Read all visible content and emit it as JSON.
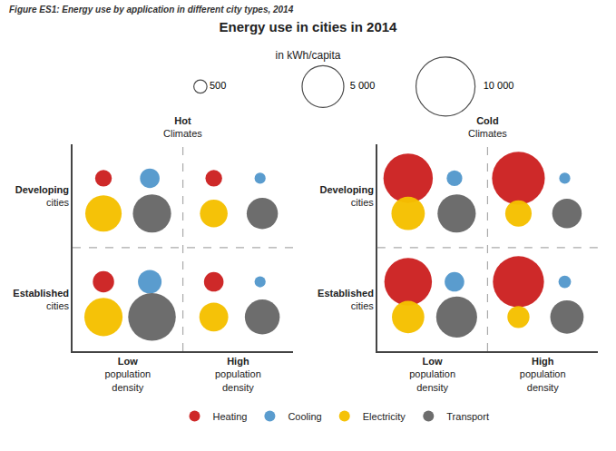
{
  "chart_data": {
    "type": "bubble",
    "title": "Energy use in cities in 2014",
    "subtitle": "in kWh/capita",
    "annotations": [
      "Figure ES1: Energy use by application in different city types, 2014"
    ],
    "x_categories": [
      "Low\npopulation\ndensity",
      "High\npopulation\ndensity"
    ],
    "y_categories": [
      "Developing\ncities",
      "Established\ncities"
    ],
    "size_legend": {
      "values": [
        500,
        5000,
        10000
      ],
      "labels": [
        "500",
        "5 000",
        "10 000"
      ]
    },
    "grid": false,
    "legend": "bottom",
    "panels": [
      {
        "title": "Hot",
        "subtitle": "Climates",
        "series": [
          {
            "name": "Heating",
            "color": "#cc2222",
            "x": [
              "Low\npopulation\ndensity",
              "High\npopulation\ndensity",
              "Low\npopulation\ndensity",
              "High\npopulation\ndensity"
            ],
            "y": [
              "Developing\ncities",
              "Developing\ncities",
              "Established\ncities",
              "Established\ncities"
            ],
            "sizes": [
              800,
              800,
              1300,
              1100
            ]
          },
          {
            "name": "Cooling",
            "color": "#5599cc",
            "x": [
              "Low\npopulation\ndensity",
              "High\npopulation\ndensity",
              "Low\npopulation\ndensity",
              "High\npopulation\ndensity"
            ],
            "y": [
              "Developing\ncities",
              "Developing\ncities",
              "Established\ncities",
              "Established\ncities"
            ],
            "sizes": [
              1100,
              350,
              1600,
              350
            ]
          },
          {
            "name": "Electricity",
            "color": "#f5c000",
            "x": [
              "Low\npopulation\ndensity",
              "High\npopulation\ndensity",
              "Low\npopulation\ndensity",
              "High\npopulation\ndensity"
            ],
            "y": [
              "Developing\ncities",
              "Developing\ncities",
              "Established\ncities",
              "Established\ncities"
            ],
            "sizes": [
              3800,
              2200,
              4200,
              2400
            ]
          },
          {
            "name": "Transport",
            "color": "#686868",
            "x": [
              "Low\npopulation\ndensity",
              "High\npopulation\ndensity",
              "Low\npopulation\ndensity",
              "High\npopulation\ndensity"
            ],
            "y": [
              "Developing\ncities",
              "Developing\ncities",
              "Established\ncities",
              "Established\ncities"
            ],
            "sizes": [
              4200,
              2800,
              6500,
              3500
            ]
          }
        ]
      },
      {
        "title": "Cold",
        "subtitle": "Climates",
        "series": [
          {
            "name": "Heating",
            "color": "#cc2222",
            "x": [
              "Low\npopulation\ndensity",
              "High\npopulation\ndensity",
              "Low\npopulation\ndensity",
              "High\npopulation\ndensity"
            ],
            "y": [
              "Developing\ncities",
              "Developing\ncities",
              "Established\ncities",
              "Established\ncities"
            ],
            "sizes": [
              7000,
              8000,
              6500,
              7500
            ]
          },
          {
            "name": "Cooling",
            "color": "#5599cc",
            "x": [
              "Low\npopulation\ndensity",
              "High\npopulation\ndensity",
              "Low\npopulation\ndensity",
              "High\npopulation\ndensity"
            ],
            "y": [
              "Developing\ncities",
              "Developing\ncities",
              "Established\ncities",
              "Established\ncities"
            ],
            "sizes": [
              700,
              350,
              1100,
              450
            ]
          },
          {
            "name": "Electricity",
            "color": "#f5c000",
            "x": [
              "Low\npopulation\ndensity",
              "High\npopulation\ndensity",
              "Low\npopulation\ndensity",
              "High\npopulation\ndensity"
            ],
            "y": [
              "Developing\ncities",
              "Developing\ncities",
              "Established\ncities",
              "Established\ncities"
            ],
            "sizes": [
              3200,
              2000,
              3000,
              1400
            ]
          },
          {
            "name": "Transport",
            "color": "#686868",
            "x": [
              "Low\npopulation\ndensity",
              "High\npopulation\ndensity",
              "Low\npopulation\ndensity",
              "High\npopulation\ndensity"
            ],
            "y": [
              "Developing\ncities",
              "Developing\ncities",
              "Established\ncities",
              "Established\ncities"
            ],
            "sizes": [
              4200,
              2500,
              4800,
              3200
            ]
          }
        ]
      }
    ]
  }
}
